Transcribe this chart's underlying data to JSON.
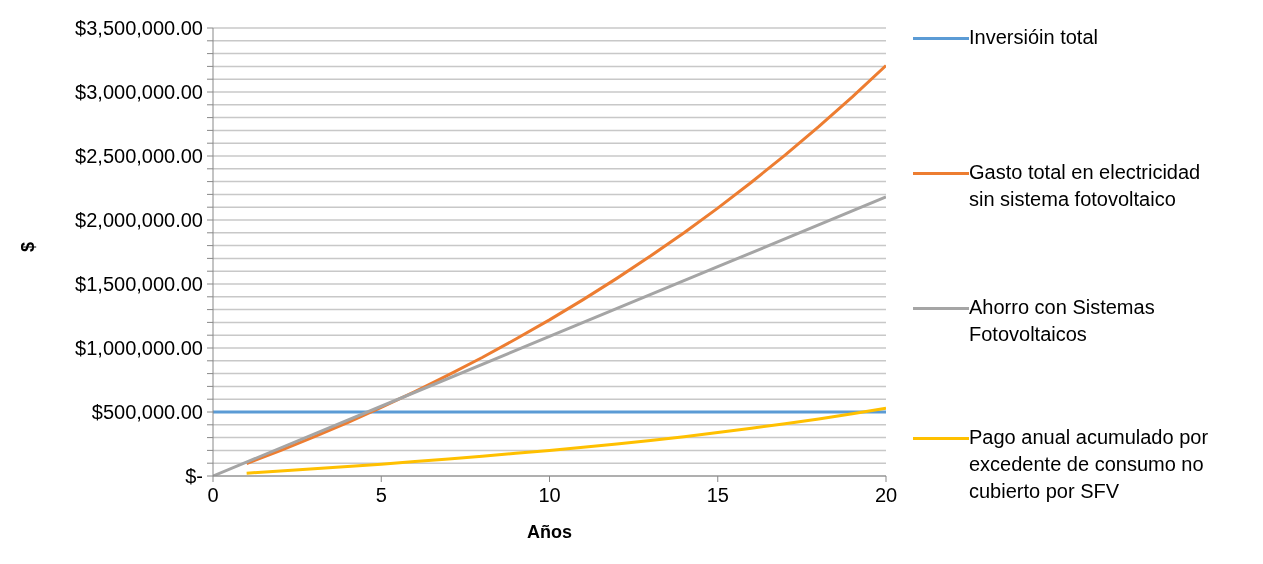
{
  "chart_data": {
    "type": "line",
    "xlabel": "Años",
    "ylabel": "$",
    "xlim": [
      0,
      20
    ],
    "xticks": [
      0,
      5,
      10,
      15,
      20
    ],
    "ylim": [
      0,
      3500000
    ],
    "yticks": [
      {
        "value": 0,
        "label": "$-"
      },
      {
        "value": 100000,
        "label": null
      },
      {
        "value": 200000,
        "label": null
      },
      {
        "value": 300000,
        "label": null
      },
      {
        "value": 400000,
        "label": null
      },
      {
        "value": 500000,
        "label": "$500,000.00"
      },
      {
        "value": 600000,
        "label": null
      },
      {
        "value": 700000,
        "label": null
      },
      {
        "value": 800000,
        "label": null
      },
      {
        "value": 900000,
        "label": null
      },
      {
        "value": 1000000,
        "label": "$1,000,000.00"
      },
      {
        "value": 1100000,
        "label": null
      },
      {
        "value": 1200000,
        "label": null
      },
      {
        "value": 1300000,
        "label": null
      },
      {
        "value": 1400000,
        "label": null
      },
      {
        "value": 1500000,
        "label": "$1,500,000.00"
      },
      {
        "value": 1600000,
        "label": null
      },
      {
        "value": 1700000,
        "label": null
      },
      {
        "value": 1800000,
        "label": null
      },
      {
        "value": 1900000,
        "label": null
      },
      {
        "value": 2000000,
        "label": "$2,000,000.00"
      },
      {
        "value": 2100000,
        "label": null
      },
      {
        "value": 2200000,
        "label": null
      },
      {
        "value": 2300000,
        "label": null
      },
      {
        "value": 2400000,
        "label": null
      },
      {
        "value": 2500000,
        "label": "$2,500,000.00"
      },
      {
        "value": 2600000,
        "label": null
      },
      {
        "value": 2700000,
        "label": null
      },
      {
        "value": 2800000,
        "label": null
      },
      {
        "value": 2900000,
        "label": null
      },
      {
        "value": 3000000,
        "label": "$3,000,000.00"
      },
      {
        "value": 3100000,
        "label": null
      },
      {
        "value": 3200000,
        "label": null
      },
      {
        "value": 3300000,
        "label": null
      },
      {
        "value": 3400000,
        "label": null
      },
      {
        "value": 3500000,
        "label": "$3,500,000.00"
      }
    ],
    "grid": "y",
    "legend": "right",
    "marker": "none",
    "line_style": "solid",
    "series": [
      {
        "name": "Inversióin total",
        "color": "#5b9bd5",
        "x": [
          0,
          20
        ],
        "values": [
          500000,
          500000
        ]
      },
      {
        "name": "Gasto total en electricidad sin sistema fotovoltaico",
        "color": "#ed7d31",
        "x": [
          1,
          2,
          3,
          4,
          5,
          6,
          7,
          8,
          9,
          10,
          11,
          12,
          13,
          14,
          15,
          16,
          17,
          18,
          19,
          20
        ],
        "values": [
          97000,
          199000,
          306000,
          418000,
          536000,
          660000,
          790000,
          926000,
          1070000,
          1220000,
          1378000,
          1544000,
          1718000,
          1901000,
          2093000,
          2295000,
          2507000,
          2729000,
          2962000,
          3207000
        ]
      },
      {
        "name": "Ahorro con Sistemas Fotovoltaicos",
        "color": "#a5a5a5",
        "x": [
          0,
          5,
          10,
          15,
          20
        ],
        "values": [
          0,
          545000,
          1090000,
          1635000,
          2180000
        ]
      },
      {
        "name": "Pago anual acumulado por excedente de consumo no cubierto por SFV",
        "color": "#ffc000",
        "x": [
          1,
          2,
          3,
          4,
          5,
          6,
          7,
          8,
          9,
          10,
          11,
          12,
          13,
          14,
          15,
          16,
          17,
          18,
          19,
          20
        ],
        "values": [
          22000,
          39000,
          57000,
          74000,
          92000,
          113000,
          133000,
          154000,
          177000,
          200000,
          225000,
          250000,
          277000,
          307000,
          340000,
          373000,
          408000,
          446000,
          487000,
          530000
        ]
      }
    ]
  }
}
